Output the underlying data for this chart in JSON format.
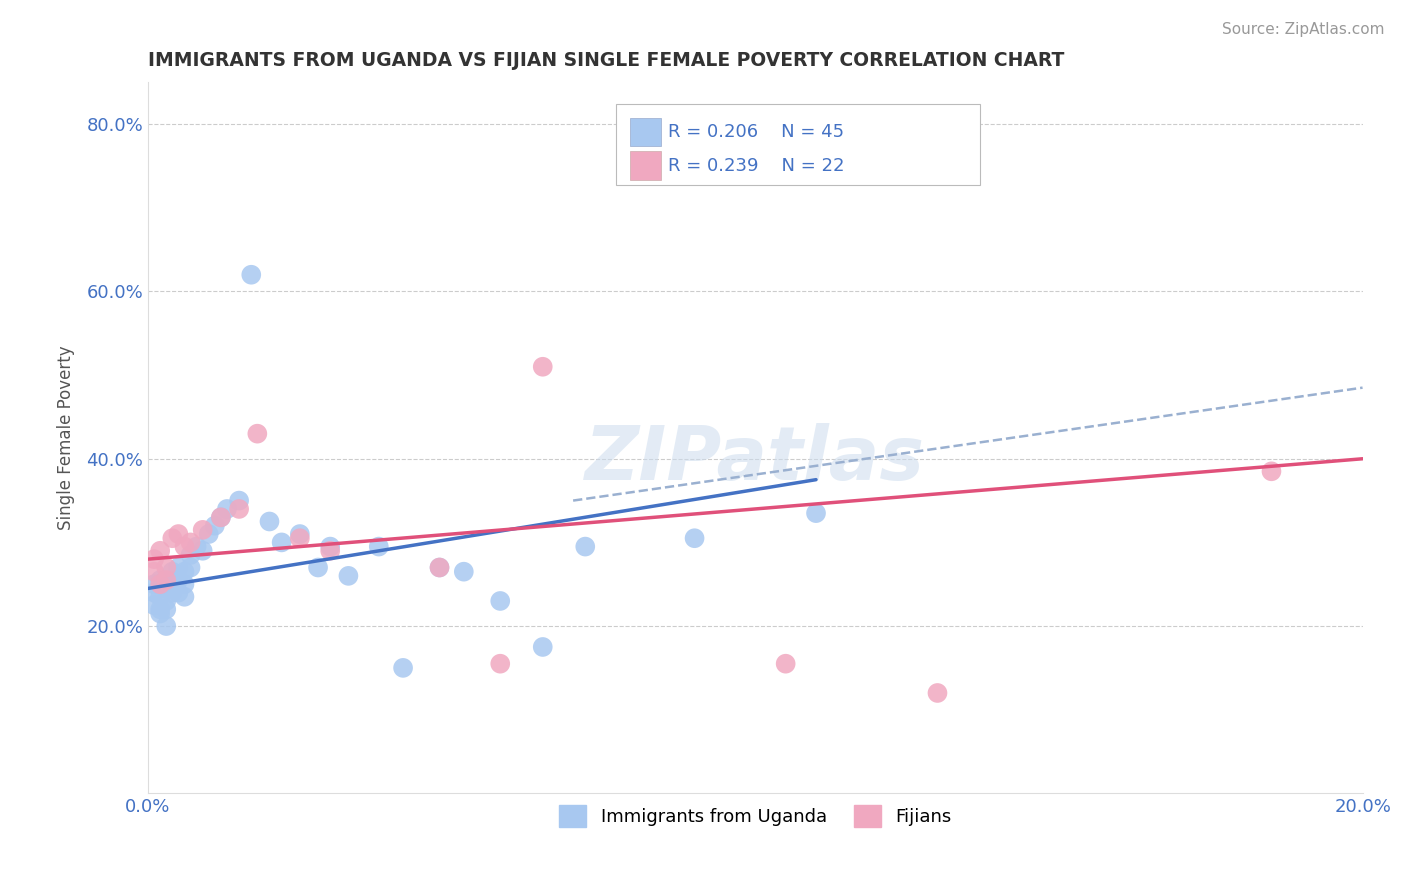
{
  "title": "IMMIGRANTS FROM UGANDA VS FIJIAN SINGLE FEMALE POVERTY CORRELATION CHART",
  "source": "Source: ZipAtlas.com",
  "ylabel": "Single Female Poverty",
  "xlim": [
    0.0,
    0.2
  ],
  "ylim": [
    0.0,
    0.85
  ],
  "xtick_positions": [
    0.0,
    0.05,
    0.1,
    0.15,
    0.2
  ],
  "xtick_labels": [
    "0.0%",
    "",
    "",
    "",
    "20.0%"
  ],
  "ytick_positions": [
    0.2,
    0.4,
    0.6,
    0.8
  ],
  "ytick_labels": [
    "20.0%",
    "40.0%",
    "60.0%",
    "80.0%"
  ],
  "legend_label1": "Immigrants from Uganda",
  "legend_label2": "Fijians",
  "r1": "0.206",
  "n1": "45",
  "r2": "0.239",
  "n2": "22",
  "color_uganda": "#a8c8f0",
  "color_fijian": "#f0a8c0",
  "color_uganda_line": "#4472c4",
  "color_fijian_line": "#e0507a",
  "color_dash": "#9ab0d0",
  "background_color": "#ffffff",
  "grid_color": "#cccccc",
  "watermark": "ZIPatlas",
  "title_color": "#333333",
  "tick_color": "#4472c4",
  "source_color": "#999999",
  "uganda_x": [
    0.001,
    0.001,
    0.001,
    0.002,
    0.002,
    0.002,
    0.002,
    0.003,
    0.003,
    0.003,
    0.003,
    0.004,
    0.004,
    0.004,
    0.005,
    0.005,
    0.005,
    0.006,
    0.006,
    0.006,
    0.007,
    0.007,
    0.008,
    0.009,
    0.01,
    0.011,
    0.012,
    0.013,
    0.015,
    0.017,
    0.02,
    0.022,
    0.025,
    0.028,
    0.03,
    0.033,
    0.038,
    0.042,
    0.048,
    0.052,
    0.058,
    0.065,
    0.072,
    0.09,
    0.11
  ],
  "uganda_y": [
    0.25,
    0.24,
    0.225,
    0.255,
    0.235,
    0.22,
    0.215,
    0.245,
    0.23,
    0.22,
    0.2,
    0.265,
    0.25,
    0.24,
    0.27,
    0.255,
    0.24,
    0.265,
    0.25,
    0.235,
    0.285,
    0.27,
    0.295,
    0.29,
    0.31,
    0.32,
    0.33,
    0.34,
    0.35,
    0.62,
    0.325,
    0.3,
    0.31,
    0.27,
    0.295,
    0.26,
    0.295,
    0.15,
    0.27,
    0.265,
    0.23,
    0.175,
    0.295,
    0.305,
    0.335
  ],
  "fijian_x": [
    0.001,
    0.001,
    0.002,
    0.002,
    0.003,
    0.003,
    0.004,
    0.005,
    0.006,
    0.007,
    0.009,
    0.012,
    0.015,
    0.018,
    0.025,
    0.03,
    0.048,
    0.058,
    0.065,
    0.105,
    0.13,
    0.185
  ],
  "fijian_y": [
    0.28,
    0.265,
    0.25,
    0.29,
    0.27,
    0.255,
    0.305,
    0.31,
    0.295,
    0.3,
    0.315,
    0.33,
    0.34,
    0.43,
    0.305,
    0.29,
    0.27,
    0.155,
    0.51,
    0.155,
    0.12,
    0.385
  ],
  "uganda_line_x0": 0.0,
  "uganda_line_y0": 0.245,
  "uganda_line_x1": 0.11,
  "uganda_line_y1": 0.375,
  "fijian_line_x0": 0.0,
  "fijian_line_y0": 0.28,
  "fijian_line_x1": 0.2,
  "fijian_line_y1": 0.4,
  "dash_line_x0": 0.07,
  "dash_line_y0": 0.35,
  "dash_line_x1": 0.2,
  "dash_line_y1": 0.485
}
